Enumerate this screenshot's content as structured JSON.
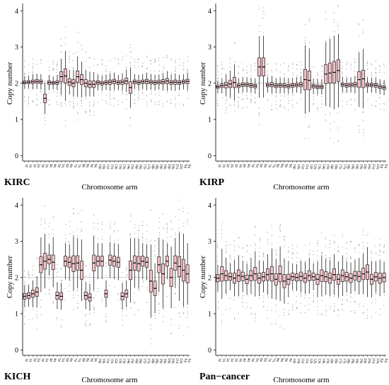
{
  "chart_data": [
    {
      "type": "box",
      "label": "KIRC",
      "xlabel": "Chromosome arm",
      "ylabel": "Copy number",
      "ylim": [
        -0.15,
        4.2
      ],
      "yticks": [
        0,
        1,
        2,
        3,
        4
      ],
      "reference_line": 2,
      "colors": {
        "box_fill": "#f4c2c8",
        "box_stroke": "#000000",
        "outlier": "#999999",
        "ref": "#bbbbbb"
      },
      "categories": [
        "1p",
        "1q",
        "2p",
        "2q",
        "3p",
        "3q",
        "4p",
        "4q",
        "5p",
        "5q",
        "6p",
        "6q",
        "7p",
        "7q",
        "8p",
        "8q",
        "9p",
        "9q",
        "10p",
        "10q",
        "11p",
        "11q",
        "12p",
        "12q",
        "13q",
        "14q",
        "15q",
        "16p",
        "16q",
        "17p",
        "17q",
        "18p",
        "18q",
        "19p",
        "19q",
        "20p",
        "20q",
        "21q",
        "22q",
        "Xp",
        "Xq"
      ],
      "medians": [
        2.02,
        2.03,
        2.04,
        2.05,
        2.04,
        1.58,
        2.02,
        2.01,
        2.02,
        2.18,
        2.2,
        2.03,
        2.0,
        2.18,
        2.1,
        2.0,
        1.97,
        1.97,
        2.02,
        2.0,
        2.02,
        2.03,
        2.05,
        2.02,
        2.03,
        2.06,
        1.88,
        2.04,
        2.02,
        2.04,
        2.05,
        2.03,
        2.02,
        2.03,
        2.04,
        2.06,
        2.02,
        2.03,
        2.02,
        2.04,
        2.05
      ],
      "spreads": [
        0.04,
        0.04,
        0.05,
        0.05,
        0.05,
        0.12,
        0.05,
        0.04,
        0.05,
        0.14,
        0.2,
        0.09,
        0.1,
        0.16,
        0.14,
        0.1,
        0.09,
        0.09,
        0.05,
        0.05,
        0.05,
        0.06,
        0.06,
        0.05,
        0.06,
        0.08,
        0.16,
        0.05,
        0.05,
        0.05,
        0.06,
        0.05,
        0.05,
        0.05,
        0.06,
        0.07,
        0.05,
        0.06,
        0.05,
        0.05,
        0.06
      ]
    },
    {
      "type": "box",
      "label": "KIRP",
      "xlabel": "Chromosome arm",
      "ylabel": "Copy number",
      "ylim": [
        -0.15,
        4.2
      ],
      "yticks": [
        0,
        1,
        2,
        3,
        4
      ],
      "reference_line": 2,
      "colors": {
        "box_fill": "#f4c2c8",
        "box_stroke": "#000000",
        "outlier": "#999999",
        "ref": "#bbbbbb"
      },
      "categories": [
        "1p",
        "1q",
        "2p",
        "2q",
        "3p",
        "3q",
        "4p",
        "4q",
        "5p",
        "5q",
        "6p",
        "6q",
        "7p",
        "7q",
        "8p",
        "8q",
        "9p",
        "9q",
        "10p",
        "10q",
        "11p",
        "11q",
        "12p",
        "12q",
        "13q",
        "14q",
        "15q",
        "16p",
        "16q",
        "17p",
        "17q",
        "18p",
        "18q",
        "19p",
        "19q",
        "20p",
        "20q",
        "21q",
        "22q",
        "Xp",
        "Xq"
      ],
      "medians": [
        1.9,
        1.93,
        1.95,
        1.98,
        2.02,
        1.93,
        1.96,
        1.96,
        1.94,
        1.92,
        2.45,
        2.45,
        1.95,
        1.96,
        1.93,
        1.94,
        1.93,
        1.92,
        1.94,
        1.95,
        1.96,
        2.1,
        2.08,
        1.92,
        1.9,
        1.9,
        2.25,
        2.28,
        2.3,
        2.35,
        1.96,
        1.94,
        1.95,
        1.96,
        2.1,
        2.12,
        1.95,
        1.95,
        1.94,
        1.9,
        1.88
      ],
      "spreads": [
        0.04,
        0.05,
        0.08,
        0.1,
        0.14,
        0.05,
        0.05,
        0.05,
        0.05,
        0.05,
        0.25,
        0.25,
        0.05,
        0.06,
        0.05,
        0.05,
        0.05,
        0.05,
        0.05,
        0.05,
        0.06,
        0.28,
        0.26,
        0.05,
        0.05,
        0.05,
        0.26,
        0.28,
        0.3,
        0.3,
        0.05,
        0.05,
        0.05,
        0.06,
        0.22,
        0.24,
        0.05,
        0.05,
        0.05,
        0.05,
        0.05
      ]
    },
    {
      "type": "box",
      "label": "KICH",
      "xlabel": "Chromosome arm",
      "ylabel": "Copy number",
      "ylim": [
        -0.15,
        4.2
      ],
      "yticks": [
        0,
        1,
        2,
        3,
        4
      ],
      "reference_line": 2,
      "colors": {
        "box_fill": "#f4c2c8",
        "box_stroke": "#000000",
        "outlier": "#999999",
        "ref": "#bbbbbb"
      },
      "categories": [
        "1p",
        "1q",
        "2p",
        "2q",
        "3p",
        "3q",
        "4p",
        "4q",
        "5p",
        "5q",
        "6p",
        "6q",
        "7p",
        "7q",
        "8p",
        "8q",
        "9p",
        "9q",
        "10p",
        "10q",
        "11p",
        "11q",
        "12p",
        "12q",
        "13q",
        "14q",
        "15q",
        "16p",
        "16q",
        "17p",
        "17q",
        "18p",
        "18q",
        "19p",
        "19q",
        "20p",
        "20q",
        "21q",
        "22q",
        "Xp",
        "Xq"
      ],
      "medians": [
        1.48,
        1.5,
        1.55,
        1.6,
        2.35,
        2.45,
        2.5,
        2.42,
        1.5,
        1.48,
        2.45,
        2.42,
        2.38,
        2.4,
        2.2,
        1.5,
        1.45,
        2.4,
        2.45,
        2.45,
        1.55,
        2.48,
        2.45,
        2.42,
        1.48,
        1.55,
        2.2,
        2.4,
        2.38,
        2.45,
        2.42,
        1.9,
        1.7,
        2.35,
        2.1,
        2.45,
        2.0,
        2.4,
        2.3,
        2.2,
        2.1
      ],
      "spreads": [
        0.08,
        0.08,
        0.1,
        0.12,
        0.22,
        0.22,
        0.12,
        0.2,
        0.1,
        0.1,
        0.14,
        0.14,
        0.22,
        0.2,
        0.25,
        0.1,
        0.1,
        0.22,
        0.14,
        0.14,
        0.1,
        0.14,
        0.14,
        0.14,
        0.1,
        0.1,
        0.26,
        0.2,
        0.2,
        0.14,
        0.14,
        0.3,
        0.2,
        0.22,
        0.28,
        0.14,
        0.25,
        0.2,
        0.28,
        0.3,
        0.25
      ]
    },
    {
      "type": "box",
      "label": "Pan−cancer",
      "xlabel": "Chromosome arm",
      "ylabel": "Copy number",
      "ylim": [
        -0.15,
        4.2
      ],
      "yticks": [
        0,
        1,
        2,
        3,
        4
      ],
      "reference_line": 2,
      "colors": {
        "box_fill": "#f4c2c8",
        "box_stroke": "#000000",
        "outlier": "#999999",
        "ref": "#bbbbbb"
      },
      "categories": [
        "1p",
        "1q",
        "2p",
        "2q",
        "3p",
        "3q",
        "4p",
        "4q",
        "5p",
        "5q",
        "6p",
        "6q",
        "7p",
        "7q",
        "8p",
        "8q",
        "9p",
        "9q",
        "10p",
        "10q",
        "11p",
        "11q",
        "12p",
        "12q",
        "13q",
        "14q",
        "15q",
        "16p",
        "16q",
        "17p",
        "17q",
        "18p",
        "18q",
        "19p",
        "19q",
        "20p",
        "20q",
        "21q",
        "22q",
        "Xp",
        "Xq"
      ],
      "medians": [
        1.98,
        2.1,
        2.05,
        2.02,
        1.98,
        2.05,
        2.03,
        1.95,
        2.05,
        2.1,
        1.98,
        2.02,
        2.08,
        2.1,
        1.95,
        2.1,
        1.9,
        1.95,
        2.02,
        2.0,
        2.03,
        1.98,
        2.05,
        2.02,
        1.95,
        2.05,
        2.02,
        1.98,
        2.08,
        1.95,
        2.05,
        2.02,
        1.98,
        2.05,
        2.03,
        2.1,
        2.15,
        1.95,
        2.02,
        1.98,
        2.0
      ],
      "spreads": [
        0.1,
        0.2,
        0.14,
        0.1,
        0.14,
        0.16,
        0.12,
        0.12,
        0.14,
        0.18,
        0.14,
        0.12,
        0.16,
        0.2,
        0.16,
        0.22,
        0.18,
        0.14,
        0.1,
        0.1,
        0.12,
        0.12,
        0.14,
        0.1,
        0.14,
        0.16,
        0.14,
        0.14,
        0.16,
        0.14,
        0.16,
        0.12,
        0.12,
        0.12,
        0.14,
        0.16,
        0.2,
        0.14,
        0.12,
        0.14,
        0.12
      ]
    }
  ]
}
